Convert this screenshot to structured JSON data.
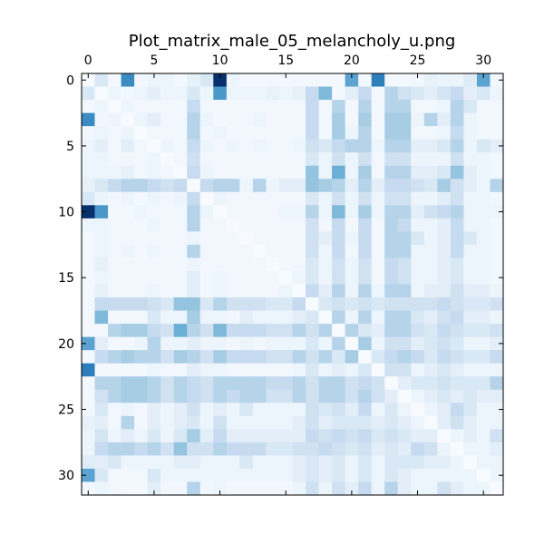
{
  "chart_data": {
    "type": "heatmap",
    "title": "Plot_matrix_male_05_melancholy_u.png",
    "xlabel": "",
    "ylabel": "",
    "x_axis_position": "top",
    "size": 32,
    "xlim": [
      -0.5,
      31.5
    ],
    "ylim": [
      31.5,
      -0.5
    ],
    "x_ticks": [
      0,
      5,
      10,
      15,
      20,
      25,
      30
    ],
    "y_ticks": [
      0,
      5,
      10,
      15,
      20,
      25,
      30
    ],
    "colormap": "Blues",
    "vmin": 0,
    "vmax": 1,
    "grid": false,
    "cmap_stops": [
      "#f7fbff",
      "#deebf7",
      "#c6dbef",
      "#9ecae1",
      "#6baed6",
      "#4292c6",
      "#2171b5",
      "#08519c",
      "#08306b"
    ],
    "values": [
      [
        0.0,
        0.15,
        0.02,
        0.65,
        0.03,
        0.05,
        0.05,
        0.02,
        0.08,
        0.15,
        1.0,
        0.05,
        0.02,
        0.02,
        0.02,
        0.02,
        0.02,
        0.02,
        0.02,
        0.02,
        0.55,
        0.02,
        0.7,
        0.02,
        0.02,
        0.03,
        0.08,
        0.05,
        0.05,
        0.12,
        0.55,
        0.02
      ],
      [
        0.15,
        0.0,
        0.05,
        0.03,
        0.05,
        0.1,
        0.05,
        0.05,
        0.15,
        0.05,
        0.6,
        0.05,
        0.05,
        0.05,
        0.08,
        0.05,
        0.08,
        0.25,
        0.45,
        0.02,
        0.1,
        0.25,
        0.02,
        0.3,
        0.2,
        0.15,
        0.1,
        0.18,
        0.25,
        0.1,
        0.15,
        0.05
      ],
      [
        0.02,
        0.05,
        0.0,
        0.05,
        0.03,
        0.03,
        0.03,
        0.02,
        0.25,
        0.03,
        0.02,
        0.03,
        0.03,
        0.03,
        0.03,
        0.03,
        0.03,
        0.25,
        0.03,
        0.3,
        0.02,
        0.3,
        0.02,
        0.3,
        0.3,
        0.03,
        0.03,
        0.05,
        0.3,
        0.15,
        0.03,
        0.03
      ],
      [
        0.65,
        0.03,
        0.05,
        0.0,
        0.05,
        0.1,
        0.03,
        0.02,
        0.3,
        0.05,
        0.02,
        0.03,
        0.02,
        0.05,
        0.03,
        0.02,
        0.03,
        0.25,
        0.03,
        0.35,
        0.02,
        0.35,
        0.02,
        0.35,
        0.35,
        0.05,
        0.3,
        0.1,
        0.3,
        0.05,
        0.03,
        0.02
      ],
      [
        0.03,
        0.05,
        0.03,
        0.05,
        0.0,
        0.03,
        0.03,
        0.02,
        0.3,
        0.02,
        0.05,
        0.02,
        0.02,
        0.02,
        0.02,
        0.02,
        0.03,
        0.25,
        0.03,
        0.35,
        0.05,
        0.3,
        0.02,
        0.35,
        0.35,
        0.03,
        0.03,
        0.05,
        0.25,
        0.05,
        0.03,
        0.02
      ],
      [
        0.05,
        0.1,
        0.03,
        0.1,
        0.03,
        0.0,
        0.05,
        0.03,
        0.25,
        0.05,
        0.03,
        0.05,
        0.03,
        0.05,
        0.03,
        0.03,
        0.05,
        0.2,
        0.15,
        0.25,
        0.3,
        0.3,
        0.05,
        0.3,
        0.3,
        0.1,
        0.1,
        0.15,
        0.3,
        0.05,
        0.15,
        0.1
      ],
      [
        0.05,
        0.05,
        0.03,
        0.03,
        0.03,
        0.05,
        0.0,
        0.03,
        0.2,
        0.03,
        0.03,
        0.03,
        0.03,
        0.03,
        0.03,
        0.03,
        0.03,
        0.15,
        0.05,
        0.2,
        0.05,
        0.2,
        0.03,
        0.2,
        0.2,
        0.05,
        0.05,
        0.05,
        0.2,
        0.05,
        0.05,
        0.03
      ],
      [
        0.05,
        0.05,
        0.05,
        0.08,
        0.03,
        0.05,
        0.03,
        0.0,
        0.25,
        0.05,
        0.03,
        0.03,
        0.03,
        0.03,
        0.03,
        0.03,
        0.03,
        0.4,
        0.05,
        0.5,
        0.05,
        0.35,
        0.03,
        0.3,
        0.3,
        0.1,
        0.1,
        0.15,
        0.4,
        0.1,
        0.05,
        0.03
      ],
      [
        0.08,
        0.15,
        0.25,
        0.3,
        0.3,
        0.25,
        0.2,
        0.25,
        0.0,
        0.25,
        0.3,
        0.3,
        0.05,
        0.3,
        0.05,
        0.1,
        0.1,
        0.4,
        0.35,
        0.3,
        0.1,
        0.3,
        0.1,
        0.25,
        0.25,
        0.2,
        0.15,
        0.35,
        0.2,
        0.1,
        0.05,
        0.3
      ],
      [
        0.15,
        0.05,
        0.03,
        0.05,
        0.02,
        0.05,
        0.03,
        0.05,
        0.25,
        0.0,
        0.05,
        0.03,
        0.03,
        0.03,
        0.03,
        0.03,
        0.03,
        0.15,
        0.05,
        0.2,
        0.05,
        0.2,
        0.05,
        0.2,
        0.2,
        0.05,
        0.05,
        0.1,
        0.2,
        0.05,
        0.05,
        0.03
      ],
      [
        1.0,
        0.6,
        0.02,
        0.02,
        0.05,
        0.03,
        0.03,
        0.03,
        0.3,
        0.05,
        0.0,
        0.03,
        0.03,
        0.03,
        0.03,
        0.05,
        0.05,
        0.3,
        0.05,
        0.45,
        0.05,
        0.35,
        0.05,
        0.3,
        0.3,
        0.1,
        0.2,
        0.25,
        0.3,
        0.05,
        0.05,
        0.05
      ],
      [
        0.05,
        0.05,
        0.03,
        0.03,
        0.02,
        0.05,
        0.03,
        0.03,
        0.3,
        0.03,
        0.03,
        0.0,
        0.03,
        0.03,
        0.03,
        0.03,
        0.03,
        0.2,
        0.03,
        0.25,
        0.03,
        0.25,
        0.03,
        0.3,
        0.25,
        0.05,
        0.05,
        0.1,
        0.25,
        0.05,
        0.05,
        0.03
      ],
      [
        0.02,
        0.05,
        0.03,
        0.02,
        0.02,
        0.03,
        0.03,
        0.03,
        0.05,
        0.03,
        0.03,
        0.03,
        0.0,
        0.03,
        0.03,
        0.03,
        0.03,
        0.2,
        0.1,
        0.25,
        0.05,
        0.25,
        0.03,
        0.3,
        0.3,
        0.15,
        0.05,
        0.1,
        0.25,
        0.15,
        0.05,
        0.03
      ],
      [
        0.02,
        0.05,
        0.03,
        0.05,
        0.02,
        0.05,
        0.03,
        0.03,
        0.3,
        0.03,
        0.03,
        0.03,
        0.03,
        0.0,
        0.03,
        0.03,
        0.03,
        0.2,
        0.05,
        0.25,
        0.03,
        0.25,
        0.03,
        0.3,
        0.3,
        0.05,
        0.05,
        0.1,
        0.25,
        0.05,
        0.05,
        0.03
      ],
      [
        0.02,
        0.08,
        0.03,
        0.03,
        0.02,
        0.03,
        0.03,
        0.03,
        0.05,
        0.03,
        0.03,
        0.03,
        0.03,
        0.03,
        0.0,
        0.03,
        0.03,
        0.15,
        0.05,
        0.2,
        0.05,
        0.2,
        0.03,
        0.25,
        0.2,
        0.05,
        0.05,
        0.1,
        0.15,
        0.05,
        0.05,
        0.03
      ],
      [
        0.02,
        0.05,
        0.03,
        0.02,
        0.02,
        0.03,
        0.03,
        0.03,
        0.1,
        0.03,
        0.05,
        0.03,
        0.03,
        0.03,
        0.03,
        0.0,
        0.05,
        0.15,
        0.05,
        0.2,
        0.05,
        0.2,
        0.03,
        0.25,
        0.2,
        0.05,
        0.05,
        0.1,
        0.15,
        0.05,
        0.05,
        0.03
      ],
      [
        0.02,
        0.08,
        0.03,
        0.03,
        0.03,
        0.05,
        0.03,
        0.03,
        0.1,
        0.03,
        0.05,
        0.03,
        0.03,
        0.03,
        0.03,
        0.05,
        0.0,
        0.25,
        0.1,
        0.3,
        0.05,
        0.3,
        0.05,
        0.3,
        0.3,
        0.05,
        0.1,
        0.1,
        0.2,
        0.1,
        0.1,
        0.05
      ],
      [
        0.02,
        0.25,
        0.25,
        0.25,
        0.25,
        0.2,
        0.15,
        0.4,
        0.4,
        0.15,
        0.3,
        0.2,
        0.2,
        0.2,
        0.15,
        0.15,
        0.25,
        0.0,
        0.15,
        0.2,
        0.15,
        0.2,
        0.15,
        0.2,
        0.2,
        0.2,
        0.2,
        0.25,
        0.2,
        0.15,
        0.15,
        0.2
      ],
      [
        0.02,
        0.45,
        0.03,
        0.03,
        0.03,
        0.15,
        0.05,
        0.05,
        0.35,
        0.05,
        0.05,
        0.03,
        0.1,
        0.05,
        0.05,
        0.05,
        0.1,
        0.15,
        0.0,
        0.3,
        0.05,
        0.3,
        0.05,
        0.3,
        0.3,
        0.15,
        0.1,
        0.2,
        0.25,
        0.1,
        0.1,
        0.05
      ],
      [
        0.02,
        0.02,
        0.3,
        0.35,
        0.35,
        0.25,
        0.2,
        0.5,
        0.3,
        0.2,
        0.45,
        0.25,
        0.25,
        0.25,
        0.2,
        0.2,
        0.3,
        0.2,
        0.3,
        0.0,
        0.3,
        0.15,
        0.1,
        0.3,
        0.3,
        0.2,
        0.15,
        0.25,
        0.2,
        0.15,
        0.15,
        0.2
      ],
      [
        0.55,
        0.1,
        0.02,
        0.02,
        0.05,
        0.3,
        0.05,
        0.05,
        0.1,
        0.05,
        0.05,
        0.03,
        0.05,
        0.03,
        0.05,
        0.05,
        0.05,
        0.15,
        0.05,
        0.3,
        0.0,
        0.35,
        0.05,
        0.2,
        0.2,
        0.1,
        0.15,
        0.2,
        0.15,
        0.05,
        0.05,
        0.1
      ],
      [
        0.02,
        0.25,
        0.3,
        0.35,
        0.3,
        0.3,
        0.2,
        0.35,
        0.3,
        0.2,
        0.35,
        0.25,
        0.25,
        0.25,
        0.2,
        0.2,
        0.3,
        0.2,
        0.3,
        0.15,
        0.35,
        0.0,
        0.15,
        0.25,
        0.3,
        0.25,
        0.15,
        0.25,
        0.2,
        0.15,
        0.15,
        0.25
      ],
      [
        0.7,
        0.02,
        0.02,
        0.02,
        0.02,
        0.05,
        0.03,
        0.03,
        0.1,
        0.05,
        0.05,
        0.03,
        0.03,
        0.03,
        0.03,
        0.03,
        0.05,
        0.15,
        0.05,
        0.1,
        0.05,
        0.15,
        0.0,
        0.2,
        0.2,
        0.05,
        0.1,
        0.15,
        0.1,
        0.05,
        0.05,
        0.05
      ],
      [
        0.02,
        0.3,
        0.3,
        0.35,
        0.35,
        0.3,
        0.2,
        0.3,
        0.25,
        0.2,
        0.3,
        0.3,
        0.3,
        0.3,
        0.25,
        0.25,
        0.3,
        0.2,
        0.3,
        0.3,
        0.2,
        0.25,
        0.2,
        0.0,
        0.1,
        0.15,
        0.15,
        0.2,
        0.15,
        0.15,
        0.15,
        0.3
      ],
      [
        0.02,
        0.2,
        0.3,
        0.35,
        0.35,
        0.3,
        0.2,
        0.3,
        0.25,
        0.2,
        0.3,
        0.25,
        0.3,
        0.3,
        0.2,
        0.2,
        0.3,
        0.2,
        0.3,
        0.3,
        0.2,
        0.3,
        0.2,
        0.1,
        0.0,
        0.05,
        0.1,
        0.15,
        0.1,
        0.15,
        0.1,
        0.1
      ],
      [
        0.03,
        0.15,
        0.03,
        0.05,
        0.03,
        0.1,
        0.05,
        0.1,
        0.2,
        0.05,
        0.1,
        0.05,
        0.15,
        0.05,
        0.05,
        0.05,
        0.05,
        0.2,
        0.15,
        0.2,
        0.1,
        0.25,
        0.05,
        0.15,
        0.05,
        0.0,
        0.05,
        0.1,
        0.25,
        0.15,
        0.05,
        0.05
      ],
      [
        0.08,
        0.1,
        0.03,
        0.3,
        0.03,
        0.1,
        0.05,
        0.1,
        0.15,
        0.05,
        0.2,
        0.05,
        0.05,
        0.05,
        0.05,
        0.05,
        0.1,
        0.2,
        0.1,
        0.15,
        0.15,
        0.15,
        0.1,
        0.15,
        0.1,
        0.05,
        0.0,
        0.1,
        0.2,
        0.1,
        0.05,
        0.05
      ],
      [
        0.05,
        0.18,
        0.05,
        0.1,
        0.05,
        0.15,
        0.05,
        0.15,
        0.35,
        0.1,
        0.25,
        0.1,
        0.1,
        0.1,
        0.1,
        0.1,
        0.1,
        0.25,
        0.2,
        0.25,
        0.2,
        0.25,
        0.15,
        0.2,
        0.15,
        0.1,
        0.1,
        0.0,
        0.05,
        0.1,
        0.05,
        0.2
      ],
      [
        0.05,
        0.25,
        0.3,
        0.3,
        0.25,
        0.3,
        0.2,
        0.4,
        0.2,
        0.2,
        0.3,
        0.25,
        0.25,
        0.25,
        0.15,
        0.15,
        0.2,
        0.2,
        0.25,
        0.2,
        0.15,
        0.2,
        0.1,
        0.15,
        0.1,
        0.25,
        0.2,
        0.05,
        0.0,
        0.05,
        0.05,
        0.1
      ],
      [
        0.12,
        0.1,
        0.15,
        0.05,
        0.05,
        0.05,
        0.05,
        0.1,
        0.1,
        0.05,
        0.05,
        0.05,
        0.15,
        0.05,
        0.05,
        0.05,
        0.1,
        0.15,
        0.1,
        0.15,
        0.05,
        0.15,
        0.05,
        0.15,
        0.15,
        0.15,
        0.1,
        0.1,
        0.05,
        0.0,
        0.05,
        0.05
      ],
      [
        0.55,
        0.15,
        0.03,
        0.03,
        0.03,
        0.15,
        0.05,
        0.05,
        0.05,
        0.05,
        0.05,
        0.05,
        0.05,
        0.05,
        0.05,
        0.05,
        0.1,
        0.15,
        0.1,
        0.15,
        0.05,
        0.15,
        0.05,
        0.15,
        0.1,
        0.05,
        0.05,
        0.05,
        0.05,
        0.05,
        0.0,
        0.05
      ],
      [
        0.02,
        0.05,
        0.03,
        0.02,
        0.02,
        0.1,
        0.03,
        0.03,
        0.3,
        0.03,
        0.05,
        0.03,
        0.03,
        0.03,
        0.03,
        0.03,
        0.05,
        0.2,
        0.05,
        0.2,
        0.1,
        0.25,
        0.05,
        0.3,
        0.1,
        0.05,
        0.05,
        0.2,
        0.1,
        0.05,
        0.05,
        0.0
      ]
    ]
  }
}
